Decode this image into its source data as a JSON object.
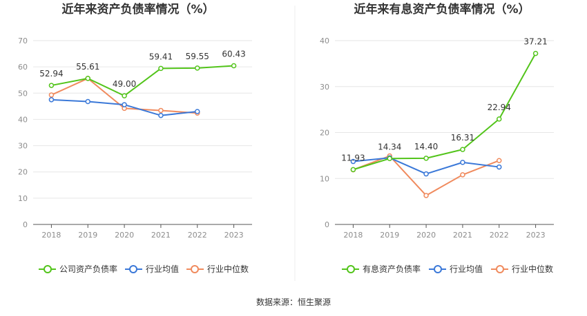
{
  "source_label": "数据来源：恒生聚源",
  "chart_data": [
    {
      "type": "line",
      "title": "近年来资产负债率情况（%）",
      "categories": [
        "2018",
        "2019",
        "2020",
        "2021",
        "2022",
        "2023"
      ],
      "ylim": [
        0,
        70
      ],
      "yticks": [
        0,
        10,
        20,
        30,
        40,
        50,
        60,
        70
      ],
      "grid": true,
      "legend_position": "bottom",
      "series": [
        {
          "name": "公司资产负债率",
          "color": "#52c41a",
          "values": [
            52.94,
            55.61,
            49.0,
            59.41,
            59.55,
            60.43
          ],
          "labels": [
            "52.94",
            "55.61",
            "49.00",
            "59.41",
            "59.55",
            "60.43"
          ]
        },
        {
          "name": "行业均值",
          "color": "#3a78d8",
          "values": [
            47.5,
            46.8,
            45.6,
            41.5,
            43.0,
            null
          ]
        },
        {
          "name": "行业中位数",
          "color": "#f08a5d",
          "values": [
            49.3,
            55.6,
            44.2,
            43.4,
            42.4,
            null
          ]
        }
      ]
    },
    {
      "type": "line",
      "title": "近年来有息资产负债率情况（%）",
      "categories": [
        "2018",
        "2019",
        "2020",
        "2021",
        "2022",
        "2023"
      ],
      "ylim": [
        0,
        40
      ],
      "yticks": [
        0,
        10,
        20,
        30,
        40
      ],
      "grid": true,
      "legend_position": "bottom",
      "series": [
        {
          "name": "有息资产负债率",
          "color": "#52c41a",
          "values": [
            11.93,
            14.34,
            14.4,
            16.31,
            22.94,
            37.21
          ],
          "labels": [
            "11.93",
            "14.34",
            "14.40",
            "16.31",
            "22.94",
            "37.21"
          ]
        },
        {
          "name": "行业均值",
          "color": "#3a78d8",
          "values": [
            13.7,
            14.5,
            11.0,
            13.5,
            12.5,
            null
          ]
        },
        {
          "name": "行业中位数",
          "color": "#f08a5d",
          "values": [
            11.9,
            14.9,
            6.3,
            10.8,
            13.9,
            null
          ]
        }
      ]
    }
  ]
}
